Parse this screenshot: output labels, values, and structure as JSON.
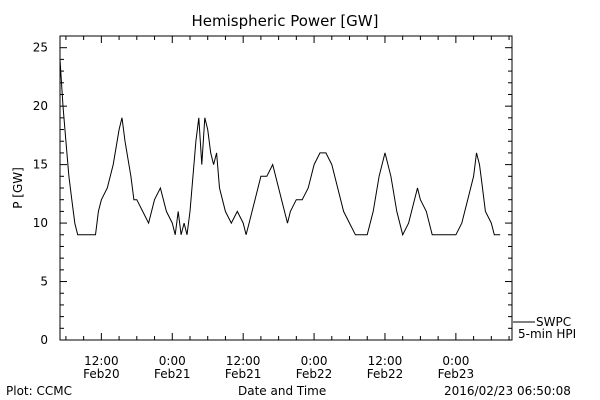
{
  "chart_data": {
    "type": "line",
    "title": "Hemispheric Power [GW]",
    "xlabel": "Date and Time",
    "ylabel": "P [GW]",
    "xlim": [
      "2016-02-20 05:00",
      "2016-02-23 09:30"
    ],
    "ylim": [
      0,
      26
    ],
    "yticks": [
      0,
      5,
      10,
      15,
      20,
      25
    ],
    "xticks": [
      {
        "t": "2016-02-20 12:00",
        "time": "12:00",
        "date": "Feb20"
      },
      {
        "t": "2016-02-21 00:00",
        "time": "0:00",
        "date": "Feb21"
      },
      {
        "t": "2016-02-21 12:00",
        "time": "12:00",
        "date": "Feb21"
      },
      {
        "t": "2016-02-22 00:00",
        "time": "0:00",
        "date": "Feb22"
      },
      {
        "t": "2016-02-22 12:00",
        "time": "12:00",
        "date": "Feb22"
      },
      {
        "t": "2016-02-23 00:00",
        "time": "0:00",
        "date": "Feb23"
      }
    ],
    "grid": false,
    "legend": {
      "position": "bottom-right",
      "entries": [
        "SWPC",
        "5-min HPI"
      ]
    },
    "series": [
      {
        "name": "SWPC",
        "color": "#000000",
        "points": [
          [
            "2016-02-20 05:00",
            24
          ],
          [
            "2016-02-20 05:30",
            20
          ],
          [
            "2016-02-20 06:00",
            17
          ],
          [
            "2016-02-20 06:30",
            14
          ],
          [
            "2016-02-20 07:00",
            12
          ],
          [
            "2016-02-20 07:30",
            10
          ],
          [
            "2016-02-20 08:00",
            9
          ],
          [
            "2016-02-20 08:30",
            9
          ],
          [
            "2016-02-20 09:00",
            9
          ],
          [
            "2016-02-20 10:00",
            9
          ],
          [
            "2016-02-20 11:00",
            9
          ],
          [
            "2016-02-20 11:30",
            11
          ],
          [
            "2016-02-20 12:00",
            12
          ],
          [
            "2016-02-20 13:00",
            13
          ],
          [
            "2016-02-20 14:00",
            15
          ],
          [
            "2016-02-20 15:00",
            18
          ],
          [
            "2016-02-20 15:30",
            19
          ],
          [
            "2016-02-20 16:00",
            17
          ],
          [
            "2016-02-20 17:00",
            14
          ],
          [
            "2016-02-20 17:30",
            12
          ],
          [
            "2016-02-20 18:00",
            12
          ],
          [
            "2016-02-20 19:00",
            11
          ],
          [
            "2016-02-20 20:00",
            10
          ],
          [
            "2016-02-20 21:00",
            12
          ],
          [
            "2016-02-20 22:00",
            13
          ],
          [
            "2016-02-20 23:00",
            11
          ],
          [
            "2016-02-21 00:00",
            10
          ],
          [
            "2016-02-21 00:30",
            9
          ],
          [
            "2016-02-21 01:00",
            11
          ],
          [
            "2016-02-21 01:30",
            9
          ],
          [
            "2016-02-21 02:00",
            10
          ],
          [
            "2016-02-21 02:30",
            9
          ],
          [
            "2016-02-21 03:00",
            11
          ],
          [
            "2016-02-21 04:00",
            17
          ],
          [
            "2016-02-21 04:30",
            19
          ],
          [
            "2016-02-21 05:00",
            15
          ],
          [
            "2016-02-21 05:30",
            19
          ],
          [
            "2016-02-21 06:00",
            18
          ],
          [
            "2016-02-21 06:30",
            16
          ],
          [
            "2016-02-21 07:00",
            15
          ],
          [
            "2016-02-21 07:30",
            16
          ],
          [
            "2016-02-21 08:00",
            13
          ],
          [
            "2016-02-21 09:00",
            11
          ],
          [
            "2016-02-21 10:00",
            10
          ],
          [
            "2016-02-21 11:00",
            11
          ],
          [
            "2016-02-21 12:00",
            10
          ],
          [
            "2016-02-21 12:30",
            9
          ],
          [
            "2016-02-21 13:00",
            10
          ],
          [
            "2016-02-21 14:00",
            12
          ],
          [
            "2016-02-21 15:00",
            14
          ],
          [
            "2016-02-21 16:00",
            14
          ],
          [
            "2016-02-21 17:00",
            15
          ],
          [
            "2016-02-21 18:00",
            13
          ],
          [
            "2016-02-21 19:00",
            11
          ],
          [
            "2016-02-21 19:30",
            10
          ],
          [
            "2016-02-21 20:00",
            11
          ],
          [
            "2016-02-21 21:00",
            12
          ],
          [
            "2016-02-21 22:00",
            12
          ],
          [
            "2016-02-21 23:00",
            13
          ],
          [
            "2016-02-22 00:00",
            15
          ],
          [
            "2016-02-22 01:00",
            16
          ],
          [
            "2016-02-22 02:00",
            16
          ],
          [
            "2016-02-22 03:00",
            15
          ],
          [
            "2016-02-22 04:00",
            13
          ],
          [
            "2016-02-22 05:00",
            11
          ],
          [
            "2016-02-22 06:00",
            10
          ],
          [
            "2016-02-22 07:00",
            9
          ],
          [
            "2016-02-22 08:00",
            9
          ],
          [
            "2016-02-22 09:00",
            9
          ],
          [
            "2016-02-22 10:00",
            11
          ],
          [
            "2016-02-22 11:00",
            14
          ],
          [
            "2016-02-22 12:00",
            16
          ],
          [
            "2016-02-22 13:00",
            14
          ],
          [
            "2016-02-22 14:00",
            11
          ],
          [
            "2016-02-22 15:00",
            9
          ],
          [
            "2016-02-22 16:00",
            10
          ],
          [
            "2016-02-22 17:00",
            12
          ],
          [
            "2016-02-22 17:30",
            13
          ],
          [
            "2016-02-22 18:00",
            12
          ],
          [
            "2016-02-22 19:00",
            11
          ],
          [
            "2016-02-22 20:00",
            9
          ],
          [
            "2016-02-22 22:00",
            9
          ],
          [
            "2016-02-23 00:00",
            9
          ],
          [
            "2016-02-23 01:00",
            10
          ],
          [
            "2016-02-23 02:00",
            12
          ],
          [
            "2016-02-23 03:00",
            14
          ],
          [
            "2016-02-23 03:30",
            16
          ],
          [
            "2016-02-23 04:00",
            15
          ],
          [
            "2016-02-23 04:30",
            13
          ],
          [
            "2016-02-23 05:00",
            11
          ],
          [
            "2016-02-23 06:00",
            10
          ],
          [
            "2016-02-23 06:30",
            9
          ],
          [
            "2016-02-23 07:30",
            9
          ]
        ]
      }
    ]
  },
  "footer": {
    "left": "Plot: CCMC",
    "right": "2016/02/23 06:50:08"
  }
}
